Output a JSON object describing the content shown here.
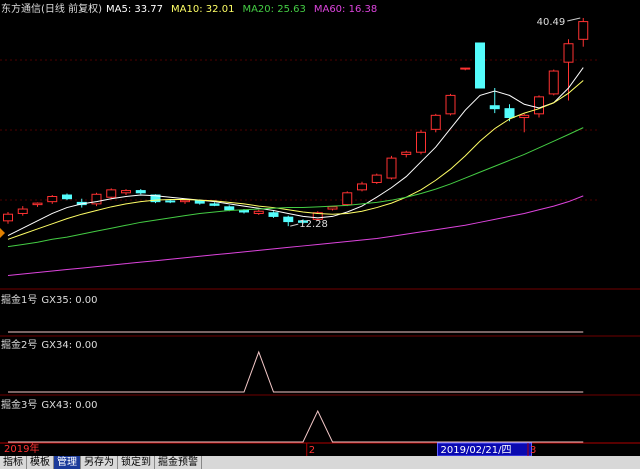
{
  "chart_data": [
    {
      "type": "candlestick",
      "title": "东方通信(日线 前复权)",
      "categories": [
        "2019年",
        null,
        null,
        null,
        null,
        null,
        null,
        null,
        null,
        null,
        null,
        null,
        null,
        null,
        null,
        null,
        null,
        null,
        null,
        null,
        null,
        "2",
        null,
        null,
        null,
        null,
        null,
        null,
        null,
        null,
        "2019/02/21/四",
        null,
        null,
        null,
        null,
        null,
        "3",
        null,
        null,
        null
      ],
      "ohlc": [
        [
          13.0,
          14.2,
          12.6,
          13.9
        ],
        [
          14.0,
          15.0,
          13.7,
          14.6
        ],
        [
          15.2,
          15.5,
          14.9,
          15.4
        ],
        [
          15.6,
          16.5,
          15.3,
          16.3
        ],
        [
          16.5,
          16.7,
          15.8,
          16.0
        ],
        [
          15.5,
          16.0,
          14.8,
          15.2
        ],
        [
          15.3,
          16.8,
          15.0,
          16.6
        ],
        [
          16.2,
          17.4,
          16.0,
          17.2
        ],
        [
          16.8,
          17.3,
          16.5,
          17.1
        ],
        [
          17.1,
          17.3,
          16.6,
          16.8
        ],
        [
          16.5,
          16.6,
          15.4,
          15.6
        ],
        [
          15.7,
          15.9,
          15.4,
          15.6
        ],
        [
          15.6,
          16.0,
          15.3,
          15.8
        ],
        [
          15.7,
          15.9,
          15.2,
          15.4
        ],
        [
          15.3,
          15.5,
          15.0,
          15.1
        ],
        [
          14.9,
          15.1,
          14.3,
          14.5
        ],
        [
          14.4,
          14.6,
          14.0,
          14.2
        ],
        [
          14.0,
          14.5,
          13.8,
          14.3
        ],
        [
          14.1,
          14.3,
          13.4,
          13.6
        ],
        [
          13.5,
          13.7,
          12.28,
          12.9
        ],
        [
          13.0,
          13.2,
          12.6,
          12.8
        ],
        [
          13.2,
          14.3,
          13.0,
          14.1
        ],
        [
          14.6,
          15.0,
          14.4,
          14.9
        ],
        [
          15.2,
          17.0,
          15.0,
          16.8
        ],
        [
          17.2,
          18.3,
          17.0,
          18.0
        ],
        [
          18.2,
          19.4,
          18.0,
          19.2
        ],
        [
          18.8,
          21.8,
          18.6,
          21.5
        ],
        [
          22.0,
          22.5,
          21.6,
          22.3
        ],
        [
          22.3,
          25.3,
          22.0,
          25.0
        ],
        [
          25.4,
          27.5,
          25.0,
          27.3
        ],
        [
          27.5,
          30.2,
          27.3,
          30.0
        ],
        [
          33.6,
          33.7,
          33.4,
          33.7
        ],
        [
          37.1,
          37.1,
          31.0,
          31.0
        ],
        [
          28.6,
          31.0,
          27.6,
          28.2
        ],
        [
          28.2,
          28.8,
          26.5,
          27.0
        ],
        [
          27.0,
          27.5,
          25.0,
          27.3
        ],
        [
          27.5,
          30.0,
          27.0,
          29.8
        ],
        [
          30.2,
          33.5,
          30.0,
          33.3
        ],
        [
          34.5,
          37.6,
          29.3,
          37.0
        ],
        [
          37.6,
          40.49,
          36.6,
          40.0
        ]
      ],
      "colors": {
        "up": "#ff3232",
        "down": "#54fcfc"
      },
      "series": [
        {
          "name": "MA5",
          "color": "#ffffff",
          "values": [
            11.0,
            12.0,
            13.0,
            14.0,
            14.8,
            15.3,
            15.6,
            16.0,
            16.3,
            16.5,
            16.4,
            16.2,
            16.0,
            15.8,
            15.6,
            15.3,
            15.0,
            14.7,
            14.4,
            14.0,
            13.6,
            13.4,
            13.6,
            14.2,
            15.0,
            16.2,
            17.5,
            19.0,
            21.0,
            23.0,
            25.5,
            28.0,
            30.0,
            30.6,
            30.0,
            28.8,
            28.3,
            29.0,
            31.0,
            33.77
          ]
        },
        {
          "name": "MA10",
          "color": "#ffff66",
          "values": [
            10.5,
            11.2,
            11.9,
            12.6,
            13.3,
            13.9,
            14.4,
            14.9,
            15.3,
            15.6,
            15.8,
            15.9,
            15.9,
            15.8,
            15.7,
            15.5,
            15.3,
            15.0,
            14.8,
            14.5,
            14.2,
            14.0,
            13.9,
            14.0,
            14.3,
            14.8,
            15.4,
            16.2,
            17.2,
            18.5,
            20.0,
            21.8,
            23.8,
            25.5,
            26.8,
            27.6,
            28.2,
            29.0,
            30.3,
            32.01
          ]
        },
        {
          "name": "MA20",
          "color": "#44cc44",
          "values": [
            9.5,
            9.8,
            10.1,
            10.5,
            10.8,
            11.2,
            11.6,
            12.0,
            12.4,
            12.8,
            13.1,
            13.4,
            13.7,
            14.0,
            14.2,
            14.4,
            14.5,
            14.6,
            14.7,
            14.8,
            14.8,
            14.9,
            15.0,
            15.1,
            15.3,
            15.5,
            15.8,
            16.2,
            16.7,
            17.3,
            18.0,
            18.8,
            19.6,
            20.4,
            21.2,
            22.0,
            22.9,
            23.8,
            24.7,
            25.63
          ]
        },
        {
          "name": "MA60",
          "color": "#dd44dd",
          "values": [
            5.6,
            5.8,
            6.0,
            6.2,
            6.4,
            6.6,
            6.8,
            7.0,
            7.2,
            7.4,
            7.6,
            7.8,
            8.0,
            8.2,
            8.4,
            8.6,
            8.8,
            9.0,
            9.2,
            9.4,
            9.6,
            9.8,
            10.0,
            10.2,
            10.4,
            10.6,
            10.9,
            11.2,
            11.5,
            11.8,
            12.1,
            12.4,
            12.8,
            13.2,
            13.6,
            14.0,
            14.5,
            15.0,
            15.6,
            16.38
          ]
        }
      ],
      "ylim": [
        3.9,
        41.3
      ]
    },
    {
      "type": "line",
      "title": "掘金1号",
      "ylim": [
        0,
        1
      ],
      "series": [
        {
          "name": "GX35",
          "color": "#f4c8c8",
          "values": [
            0,
            0,
            0,
            0,
            0,
            0,
            0,
            0,
            0,
            0,
            0,
            0,
            0,
            0,
            0,
            0,
            0,
            0,
            0,
            0,
            0,
            0,
            0,
            0,
            0,
            0,
            0,
            0,
            0,
            0,
            0,
            0,
            0,
            0,
            0,
            0,
            0,
            0,
            0,
            0
          ],
          "value_labels": [
            null,
            null,
            null,
            null,
            null,
            null,
            null,
            null,
            null,
            null,
            null,
            null,
            null,
            null,
            null,
            null,
            null,
            null,
            null,
            null,
            null,
            null,
            null,
            null,
            null,
            null,
            null,
            null,
            null,
            null,
            null,
            null,
            null,
            null,
            null,
            null,
            null,
            null,
            null,
            "0.00"
          ]
        }
      ]
    },
    {
      "type": "line",
      "title": "掘金2号",
      "ylim": [
        0,
        1
      ],
      "series": [
        {
          "name": "GX34",
          "color": "#f4c8c8",
          "values": [
            0,
            0,
            0,
            0,
            0,
            0,
            0,
            0,
            0,
            0,
            0,
            0,
            0,
            0,
            0,
            0,
            0,
            1,
            0,
            0,
            0,
            0,
            0,
            0,
            0,
            0,
            0,
            0,
            0,
            0,
            0,
            0,
            0,
            0,
            0,
            0,
            0,
            0,
            0,
            0
          ],
          "value_labels": [
            null,
            null,
            null,
            null,
            null,
            null,
            null,
            null,
            null,
            null,
            null,
            null,
            null,
            null,
            null,
            null,
            null,
            null,
            null,
            null,
            null,
            null,
            null,
            null,
            null,
            null,
            null,
            null,
            null,
            null,
            null,
            null,
            null,
            null,
            null,
            null,
            null,
            null,
            null,
            "0.00"
          ]
        }
      ]
    },
    {
      "type": "line",
      "title": "掘金3号",
      "ylim": [
        0,
        1
      ],
      "series": [
        {
          "name": "GX43",
          "color": "#f4c8c8",
          "values": [
            0,
            0,
            0,
            0,
            0,
            0,
            0,
            0,
            0,
            0,
            0,
            0,
            0,
            0,
            0,
            0,
            0,
            0,
            0,
            0,
            0,
            1,
            0,
            0,
            0,
            0,
            0,
            0,
            0,
            0,
            0,
            0,
            0,
            0,
            0,
            0,
            0,
            0,
            0,
            0
          ],
          "value_labels": [
            null,
            null,
            null,
            null,
            null,
            null,
            null,
            null,
            null,
            null,
            null,
            null,
            null,
            null,
            null,
            null,
            null,
            null,
            null,
            null,
            null,
            null,
            null,
            null,
            null,
            null,
            null,
            null,
            null,
            null,
            null,
            null,
            null,
            null,
            null,
            null,
            null,
            null,
            null,
            "0.00"
          ]
        }
      ]
    }
  ],
  "toolbar": {
    "tabs": [
      "指标",
      "模板",
      "管理",
      "另存为",
      "锁定到",
      "掘金预警"
    ],
    "active": 2
  }
}
